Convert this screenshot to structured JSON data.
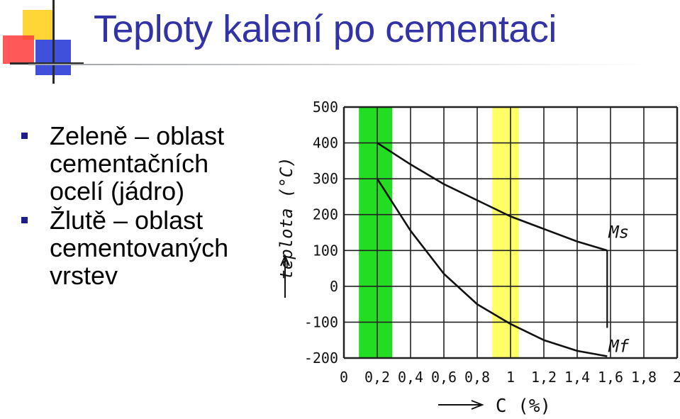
{
  "slide": {
    "title": "Teploty kalení po cementaci",
    "bullets": [
      "Zeleně – oblast cementačních ocelí (jádro)",
      "Žlutě – oblast cementovaných vrstev"
    ]
  },
  "chart_data": {
    "type": "line",
    "ylabel": "teplota (°C)",
    "xlabel": "C (%)",
    "xlim": [
      0,
      2
    ],
    "ylim": [
      -200,
      500
    ],
    "x_ticks": [
      "0",
      "0,2",
      "0,4",
      "0,6",
      "0,8",
      "1",
      "1,2",
      "1,4",
      "1,6",
      "1,8",
      "2"
    ],
    "y_ticks": [
      "500",
      "400",
      "300",
      "200",
      "100",
      "0",
      "-100",
      "-200"
    ],
    "grid": true,
    "bands": [
      {
        "color": "#22dd22",
        "x_from": 0.09,
        "x_to": 0.29
      },
      {
        "color": "#ffff66",
        "x_from": 0.89,
        "x_to": 1.05
      }
    ],
    "series": [
      {
        "name": "Ms",
        "x": [
          0.2,
          0.4,
          0.6,
          0.8,
          1.0,
          1.2,
          1.4,
          1.58
        ],
        "y": [
          400,
          340,
          285,
          240,
          195,
          160,
          125,
          100
        ]
      },
      {
        "name": "Mf",
        "x": [
          0.2,
          0.4,
          0.6,
          0.8,
          1.0,
          1.2,
          1.4,
          1.58
        ],
        "y": [
          300,
          155,
          35,
          -50,
          -105,
          -150,
          -180,
          -195
        ]
      }
    ],
    "colors": {
      "lines": "#111111",
      "grid": "#222222"
    }
  }
}
